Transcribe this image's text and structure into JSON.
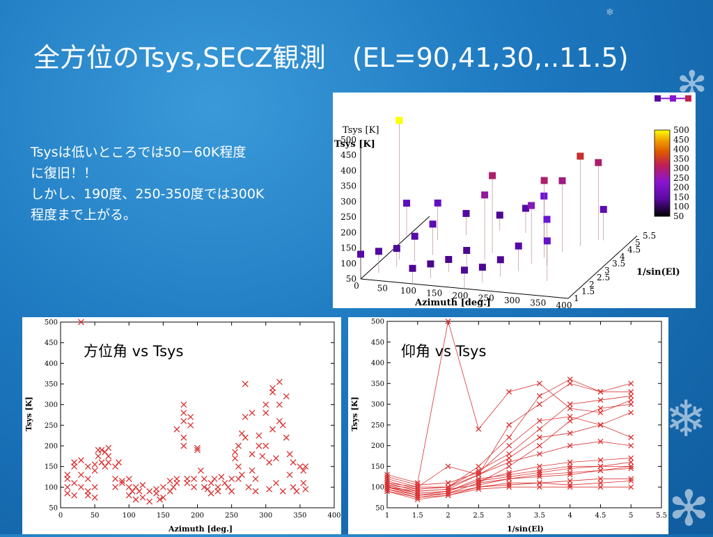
{
  "slide": {
    "title": "全方位のTsys,SECZ観測　(EL=90,41,30,..11.5)",
    "notes": [
      "Tsysは低いところでは50－60K程度",
      "に復旧！！",
      "しかし、190度、250-350度では300K",
      "程度まで上がる。"
    ]
  },
  "theme": {
    "background": "#1d78bf",
    "text": "#ffffff",
    "marker": "#d93030"
  },
  "chart_data": [
    {
      "type": "scatter",
      "projection": "3d",
      "xlabel": "Azimuth [deg.]",
      "ylabel": "1/sin(El)",
      "zlabel": "Tsys [K]",
      "xticks": [
        "0",
        "50",
        "100",
        "150",
        "200",
        "250",
        "300",
        "350",
        "400"
      ],
      "yticks": [
        "1",
        "1.5",
        "2",
        "2.5",
        "3",
        "3.5",
        "4",
        "4.5",
        "5",
        "5.5"
      ],
      "zticks": [
        "50",
        "100",
        "150",
        "200",
        "250",
        "300",
        "350",
        "400",
        "450",
        "500"
      ],
      "colorbar": {
        "ticks": [
          "500",
          "450",
          "400",
          "350",
          "300",
          "250",
          "200",
          "150",
          "100",
          "50"
        ],
        "colors": [
          "#000000",
          "#5a0aa0",
          "#8a14d2",
          "#c02050",
          "#e05a00",
          "#f0a000",
          "#ffff00"
        ]
      },
      "ylim": [
        1,
        5.5
      ],
      "zlim": [
        50,
        500
      ],
      "xlim": [
        0,
        400
      ],
      "points": [
        [
          0,
          1,
          130
        ],
        [
          20,
          1.5,
          120
        ],
        [
          40,
          2,
          110
        ],
        [
          60,
          2.5,
          130
        ],
        [
          80,
          3,
          150
        ],
        [
          100,
          1,
          100
        ],
        [
          120,
          1.5,
          95
        ],
        [
          140,
          2,
          90
        ],
        [
          160,
          2.5,
          100
        ],
        [
          180,
          3,
          260
        ],
        [
          180,
          3.5,
          300
        ],
        [
          200,
          1,
          110
        ],
        [
          220,
          1.5,
          100
        ],
        [
          240,
          2,
          105
        ],
        [
          260,
          2.5,
          130
        ],
        [
          270,
          3,
          240
        ],
        [
          280,
          3.5,
          300
        ],
        [
          300,
          4,
          280
        ],
        [
          320,
          4.5,
          340
        ],
        [
          340,
          5,
          300
        ],
        [
          350,
          5,
          150
        ],
        [
          30,
          2.5,
          500
        ],
        [
          60,
          4,
          170
        ],
        [
          100,
          4.5,
          120
        ],
        [
          150,
          5,
          100
        ],
        [
          200,
          5,
          130
        ],
        [
          250,
          4.5,
          200
        ],
        [
          300,
          3,
          200
        ],
        [
          330,
          2,
          180
        ],
        [
          0,
          4,
          160
        ]
      ]
    },
    {
      "type": "scatter",
      "title": "方位角 vs Tsys",
      "xlabel": "Azimuth [deg.]",
      "ylabel": "Tsys [K]",
      "xlim": [
        0,
        400
      ],
      "ylim": [
        50,
        500
      ],
      "xticks": [
        "0",
        "50",
        "100",
        "150",
        "200",
        "250",
        "300",
        "350",
        "400"
      ],
      "yticks": [
        "50",
        "100",
        "150",
        "200",
        "250",
        "300",
        "350",
        "400",
        "450",
        "500"
      ],
      "points": [
        [
          10,
          130
        ],
        [
          10,
          120
        ],
        [
          10,
          100
        ],
        [
          10,
          85
        ],
        [
          20,
          80
        ],
        [
          20,
          110
        ],
        [
          20,
          150
        ],
        [
          20,
          160
        ],
        [
          30,
          100
        ],
        [
          30,
          130
        ],
        [
          30,
          165
        ],
        [
          30,
          500
        ],
        [
          40,
          80
        ],
        [
          40,
          90
        ],
        [
          40,
          120
        ],
        [
          40,
          150
        ],
        [
          50,
          75
        ],
        [
          50,
          100
        ],
        [
          50,
          140
        ],
        [
          50,
          155
        ],
        [
          55,
          190
        ],
        [
          55,
          175
        ],
        [
          60,
          160
        ],
        [
          60,
          190
        ],
        [
          65,
          185
        ],
        [
          65,
          150
        ],
        [
          70,
          175
        ],
        [
          70,
          195
        ],
        [
          70,
          160
        ],
        [
          80,
          100
        ],
        [
          80,
          120
        ],
        [
          80,
          150
        ],
        [
          85,
          160
        ],
        [
          90,
          110
        ],
        [
          90,
          115
        ],
        [
          100,
          80
        ],
        [
          100,
          100
        ],
        [
          100,
          120
        ],
        [
          105,
          90
        ],
        [
          110,
          70
        ],
        [
          110,
          100
        ],
        [
          115,
          90
        ],
        [
          120,
          75
        ],
        [
          120,
          105
        ],
        [
          130,
          65
        ],
        [
          130,
          90
        ],
        [
          140,
          95
        ],
        [
          140,
          85
        ],
        [
          145,
          70
        ],
        [
          150,
          100
        ],
        [
          150,
          75
        ],
        [
          160,
          115
        ],
        [
          160,
          90
        ],
        [
          165,
          100
        ],
        [
          170,
          110
        ],
        [
          170,
          120
        ],
        [
          170,
          240
        ],
        [
          180,
          300
        ],
        [
          180,
          260
        ],
        [
          180,
          280
        ],
        [
          180,
          220
        ],
        [
          180,
          200
        ],
        [
          185,
          120
        ],
        [
          185,
          110
        ],
        [
          190,
          250
        ],
        [
          190,
          270
        ],
        [
          195,
          100
        ],
        [
          195,
          120
        ],
        [
          200,
          195
        ],
        [
          200,
          190
        ],
        [
          205,
          140
        ],
        [
          210,
          120
        ],
        [
          210,
          100
        ],
        [
          215,
          95
        ],
        [
          220,
          85
        ],
        [
          220,
          110
        ],
        [
          225,
          120
        ],
        [
          230,
          100
        ],
        [
          230,
          90
        ],
        [
          235,
          125
        ],
        [
          240,
          110
        ],
        [
          245,
          100
        ],
        [
          250,
          120
        ],
        [
          250,
          90
        ],
        [
          255,
          185
        ],
        [
          255,
          170
        ],
        [
          260,
          200
        ],
        [
          260,
          150
        ],
        [
          260,
          120
        ],
        [
          265,
          230
        ],
        [
          265,
          130
        ],
        [
          270,
          270
        ],
        [
          270,
          220
        ],
        [
          270,
          350
        ],
        [
          275,
          100
        ],
        [
          280,
          180
        ],
        [
          280,
          280
        ],
        [
          280,
          140
        ],
        [
          285,
          120
        ],
        [
          285,
          90
        ],
        [
          290,
          225
        ],
        [
          290,
          200
        ],
        [
          295,
          175
        ],
        [
          300,
          280
        ],
        [
          300,
          300
        ],
        [
          300,
          200
        ],
        [
          305,
          160
        ],
        [
          305,
          95
        ],
        [
          310,
          330
        ],
        [
          310,
          340
        ],
        [
          310,
          240
        ],
        [
          315,
          170
        ],
        [
          315,
          110
        ],
        [
          320,
          355
        ],
        [
          320,
          300
        ],
        [
          320,
          260
        ],
        [
          325,
          250
        ],
        [
          325,
          90
        ],
        [
          330,
          320
        ],
        [
          330,
          220
        ],
        [
          335,
          180
        ],
        [
          335,
          130
        ],
        [
          340,
          160
        ],
        [
          340,
          100
        ],
        [
          345,
          90
        ],
        [
          350,
          150
        ],
        [
          355,
          110
        ],
        [
          355,
          140
        ],
        [
          358,
          95
        ],
        [
          358,
          150
        ]
      ]
    },
    {
      "type": "line",
      "title": "仰角 vs Tsys",
      "xlabel": "1/sin(El)",
      "ylabel": "Tsys [K]",
      "xlim": [
        1,
        5.5
      ],
      "ylim": [
        50,
        500
      ],
      "xticks": [
        "1",
        "1.5",
        "2",
        "2.5",
        "3",
        "3.5",
        "4",
        "4.5",
        "5",
        "5.5"
      ],
      "yticks": [
        "50",
        "100",
        "150",
        "200",
        "250",
        "300",
        "350",
        "400",
        "450",
        "500"
      ],
      "x": [
        1,
        1.5,
        2,
        2.5,
        3,
        3.5,
        4,
        4.5,
        5
      ],
      "series": [
        {
          "values": [
            100,
            80,
            90,
            120,
            130,
            140,
            150,
            150,
            150
          ]
        },
        {
          "values": [
            110,
            90,
            95,
            130,
            170,
            220,
            230,
            250,
            280
          ]
        },
        {
          "values": [
            95,
            75,
            85,
            110,
            120,
            125,
            130,
            140,
            145
          ]
        },
        {
          "values": [
            120,
            100,
            100,
            130,
            250,
            300,
            350,
            330,
            350
          ]
        },
        {
          "values": [
            105,
            85,
            90,
            115,
            135,
            150,
            160,
            165,
            170
          ]
        },
        {
          "values": [
            130,
            110,
            500,
            240,
            330,
            350,
            290,
            280,
            310
          ]
        },
        {
          "values": [
            100,
            80,
            85,
            110,
            150,
            200,
            260,
            290,
            300
          ]
        },
        {
          "values": [
            90,
            70,
            80,
            100,
            110,
            110,
            115,
            120,
            120
          ]
        },
        {
          "values": [
            115,
            95,
            100,
            140,
            180,
            240,
            300,
            310,
            320
          ]
        },
        {
          "values": [
            100,
            90,
            95,
            105,
            120,
            130,
            135,
            140,
            150
          ]
        },
        {
          "values": [
            95,
            80,
            85,
            100,
            105,
            110,
            105,
            110,
            115
          ]
        },
        {
          "values": [
            110,
            100,
            150,
            130,
            160,
            180,
            200,
            210,
            200
          ]
        },
        {
          "values": [
            125,
            105,
            110,
            135,
            200,
            260,
            270,
            250,
            220
          ]
        },
        {
          "values": [
            100,
            85,
            90,
            115,
            125,
            135,
            145,
            150,
            160
          ]
        },
        {
          "values": [
            90,
            75,
            80,
            95,
            100,
            100,
            100,
            100,
            100
          ]
        },
        {
          "values": [
            105,
            95,
            100,
            150,
            220,
            320,
            360,
            330,
            330
          ]
        }
      ]
    }
  ]
}
